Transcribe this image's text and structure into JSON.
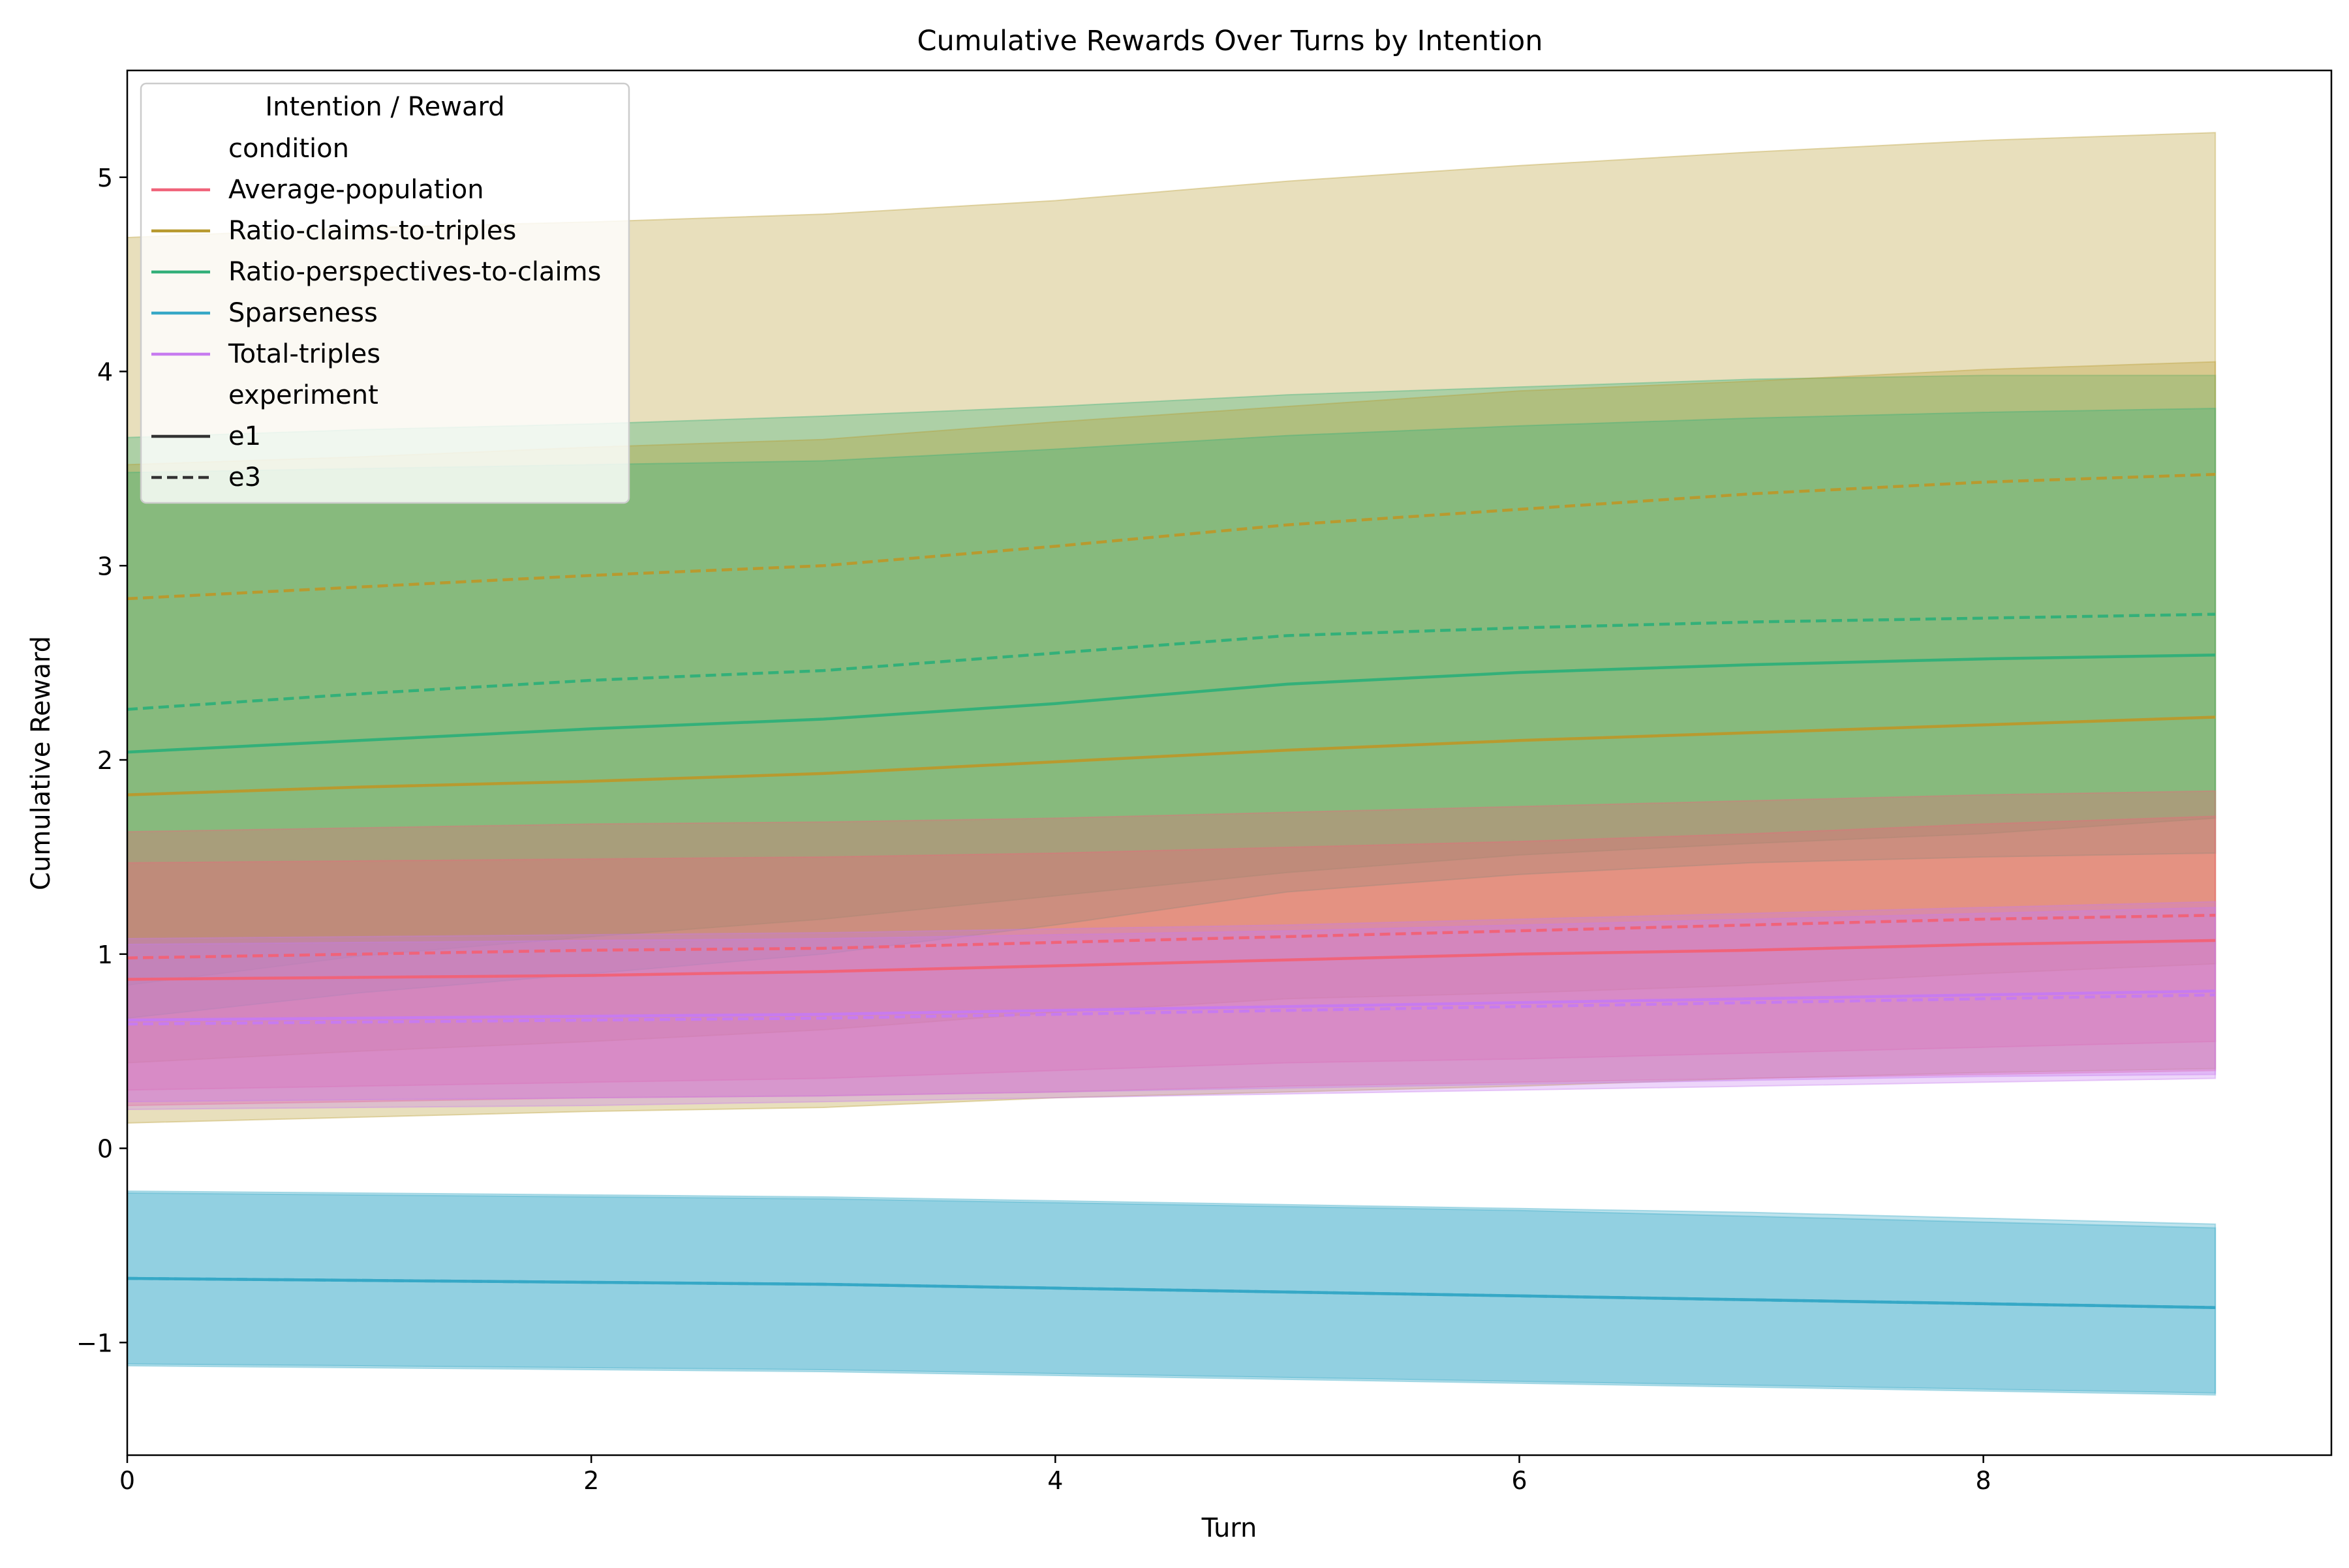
{
  "chart_data": {
    "type": "line",
    "title": "Cumulative Rewards Over Turns by Intention",
    "xlabel": "Turn",
    "ylabel": "Cumulative Reward",
    "xlim": [
      0,
      9.5
    ],
    "ylim": [
      -1.58,
      5.55
    ],
    "xticks": [
      0,
      2,
      4,
      6,
      8
    ],
    "yticks": [
      -1,
      0,
      1,
      2,
      3,
      4,
      5
    ],
    "x": [
      0,
      1,
      2,
      3,
      4,
      5,
      6,
      7,
      8,
      9
    ],
    "legend": {
      "title": "Intention / Reward",
      "placement": "upper-left",
      "condition_heading": "condition",
      "experiment_heading": "experiment",
      "experiment_styles": [
        {
          "name": "e1",
          "dash": "solid"
        },
        {
          "name": "e3",
          "dash": "dashed"
        }
      ]
    },
    "conditions": [
      {
        "name": "Average-population",
        "color": "#f0637a"
      },
      {
        "name": "Ratio-claims-to-triples",
        "color": "#b89a2f"
      },
      {
        "name": "Ratio-perspectives-to-claims",
        "color": "#33b079"
      },
      {
        "name": "Sparseness",
        "color": "#36a8c6"
      },
      {
        "name": "Total-triples",
        "color": "#c77bef"
      }
    ],
    "series": [
      {
        "condition": "Ratio-claims-to-triples",
        "experiment": "e3",
        "values": [
          2.83,
          2.89,
          2.95,
          3.0,
          3.1,
          3.21,
          3.29,
          3.37,
          3.43,
          3.47
        ],
        "lower": [
          0.13,
          0.16,
          0.19,
          0.21,
          0.26,
          0.29,
          0.32,
          0.36,
          0.39,
          0.41
        ],
        "upper": [
          4.69,
          4.74,
          4.77,
          4.81,
          4.88,
          4.98,
          5.06,
          5.13,
          5.19,
          5.23
        ]
      },
      {
        "condition": "Ratio-perspectives-to-claims",
        "experiment": "e3",
        "values": [
          2.26,
          2.34,
          2.41,
          2.46,
          2.55,
          2.64,
          2.68,
          2.71,
          2.73,
          2.75
        ],
        "lower": [
          0.84,
          0.99,
          1.09,
          1.18,
          1.3,
          1.42,
          1.51,
          1.57,
          1.62,
          1.7
        ],
        "upper": [
          3.66,
          3.7,
          3.73,
          3.77,
          3.82,
          3.88,
          3.92,
          3.96,
          3.98,
          3.98
        ]
      },
      {
        "condition": "Ratio-claims-to-triples",
        "experiment": "e1",
        "values": [
          1.82,
          1.86,
          1.89,
          1.93,
          1.99,
          2.05,
          2.1,
          2.14,
          2.18,
          2.22
        ],
        "lower": [
          0.44,
          0.5,
          0.55,
          0.61,
          0.7,
          0.77,
          0.8,
          0.84,
          0.9,
          0.95
        ],
        "upper": [
          3.52,
          3.56,
          3.61,
          3.65,
          3.74,
          3.82,
          3.9,
          3.95,
          4.01,
          4.05
        ]
      },
      {
        "condition": "Ratio-perspectives-to-claims",
        "experiment": "e1",
        "values": [
          2.04,
          2.1,
          2.16,
          2.21,
          2.29,
          2.39,
          2.45,
          2.49,
          2.52,
          2.54
        ],
        "lower": [
          0.67,
          0.8,
          0.9,
          1.0,
          1.15,
          1.32,
          1.41,
          1.47,
          1.5,
          1.52
        ],
        "upper": [
          3.48,
          3.5,
          3.52,
          3.54,
          3.6,
          3.67,
          3.72,
          3.76,
          3.79,
          3.81
        ]
      },
      {
        "condition": "Sparseness",
        "experiment": "e1",
        "values": [
          -0.67,
          -0.68,
          -0.69,
          -0.7,
          -0.72,
          -0.74,
          -0.76,
          -0.78,
          -0.8,
          -0.82
        ],
        "lower": [
          -1.11,
          -1.12,
          -1.13,
          -1.14,
          -1.16,
          -1.18,
          -1.2,
          -1.22,
          -1.24,
          -1.26
        ],
        "upper": [
          -0.23,
          -0.24,
          -0.25,
          -0.26,
          -0.28,
          -0.3,
          -0.32,
          -0.35,
          -0.38,
          -0.41
        ]
      },
      {
        "condition": "Sparseness",
        "experiment": "e3",
        "values": [
          -0.67,
          -0.68,
          -0.69,
          -0.7,
          -0.72,
          -0.74,
          -0.76,
          -0.78,
          -0.8,
          -0.82
        ],
        "lower": [
          -1.12,
          -1.13,
          -1.14,
          -1.15,
          -1.17,
          -1.19,
          -1.21,
          -1.23,
          -1.25,
          -1.27
        ],
        "upper": [
          -0.22,
          -0.23,
          -0.24,
          -0.25,
          -0.27,
          -0.29,
          -0.31,
          -0.33,
          -0.36,
          -0.39
        ]
      },
      {
        "condition": "Average-population",
        "experiment": "e3",
        "values": [
          0.98,
          1.0,
          1.02,
          1.03,
          1.06,
          1.09,
          1.12,
          1.15,
          1.18,
          1.2
        ],
        "lower": [
          0.3,
          0.32,
          0.34,
          0.36,
          0.4,
          0.44,
          0.46,
          0.49,
          0.52,
          0.55
        ],
        "upper": [
          1.63,
          1.65,
          1.67,
          1.68,
          1.7,
          1.73,
          1.76,
          1.79,
          1.82,
          1.84
        ]
      },
      {
        "condition": "Average-population",
        "experiment": "e1",
        "values": [
          0.87,
          0.88,
          0.89,
          0.91,
          0.94,
          0.97,
          1.0,
          1.02,
          1.05,
          1.07
        ],
        "lower": [
          0.22,
          0.24,
          0.26,
          0.27,
          0.29,
          0.32,
          0.34,
          0.36,
          0.38,
          0.4
        ],
        "upper": [
          1.47,
          1.48,
          1.49,
          1.5,
          1.52,
          1.55,
          1.58,
          1.62,
          1.67,
          1.71
        ]
      },
      {
        "condition": "Total-triples",
        "experiment": "e1",
        "values": [
          0.66,
          0.67,
          0.68,
          0.69,
          0.71,
          0.73,
          0.75,
          0.77,
          0.79,
          0.81
        ],
        "lower": [
          0.24,
          0.25,
          0.26,
          0.27,
          0.29,
          0.31,
          0.33,
          0.35,
          0.37,
          0.38
        ],
        "upper": [
          1.05,
          1.06,
          1.07,
          1.08,
          1.1,
          1.12,
          1.15,
          1.18,
          1.21,
          1.24
        ]
      },
      {
        "condition": "Total-triples",
        "experiment": "e3",
        "values": [
          0.64,
          0.65,
          0.66,
          0.67,
          0.69,
          0.71,
          0.73,
          0.75,
          0.77,
          0.79
        ],
        "lower": [
          0.2,
          0.21,
          0.22,
          0.24,
          0.26,
          0.28,
          0.3,
          0.32,
          0.34,
          0.36
        ],
        "upper": [
          1.08,
          1.09,
          1.1,
          1.11,
          1.13,
          1.15,
          1.18,
          1.21,
          1.24,
          1.27
        ]
      }
    ]
  }
}
